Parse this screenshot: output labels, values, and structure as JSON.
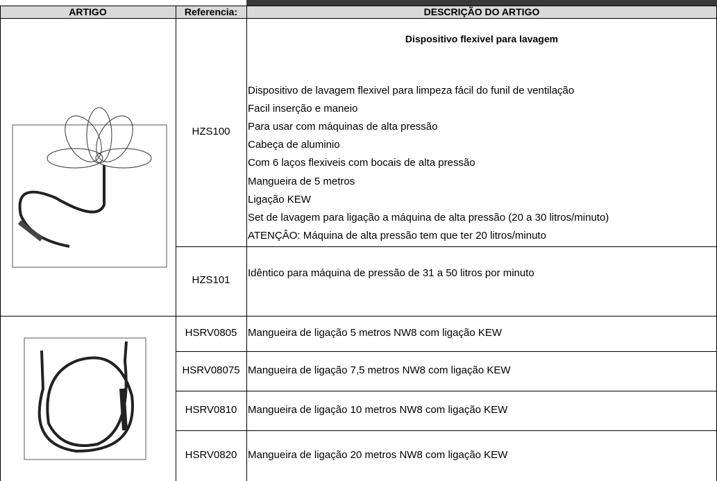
{
  "header": {
    "columns": [
      "ARTIGO",
      "Referencia:",
      "DESCRIÇÃO DO ARTIGO"
    ]
  },
  "groups": [
    {
      "title": "Dispositivo flexivel para lavagem",
      "items": [
        {
          "reference": "HZS100",
          "lines": [
            "Dispositivo de lavagem flexivel para limpeza fácil  do funil de ventilação",
            "Facil inserção e maneio",
            "Para usar com máquinas de alta pressão",
            "Cabeça de aluminio",
            "Com  6 laços flexiveis com bocais  de alta pressão",
            "Mangueira de 5 metros",
            "Ligação KEW",
            "Set de lavagem para ligação a  máquina de alta pressão (20 a 30 litros/minuto)",
            "ATENÇÂO: Máquina de alta pressão tem que ter 20 litros/minuto"
          ]
        },
        {
          "reference": "HZS101",
          "lines": [
            "Idêntico para máquina de pressão de 31 a 50 litros por minuto"
          ]
        }
      ]
    },
    {
      "items": [
        {
          "reference": "HSRV0805",
          "lines": [
            "Mangueira de ligação 5 metros NW8 com ligação KEW"
          ]
        },
        {
          "reference": "HSRV08075",
          "lines": [
            "Mangueira de ligação 7,5 metros NW8 com ligação KEW"
          ]
        },
        {
          "reference": "HSRV0810",
          "lines": [
            "Mangueira de ligação 10 metros NW8 com ligação KEW"
          ]
        },
        {
          "reference": "HSRV0820",
          "lines": [
            "Mangueira de ligação 20 metros NW8 com ligação KEW"
          ]
        }
      ]
    }
  ]
}
